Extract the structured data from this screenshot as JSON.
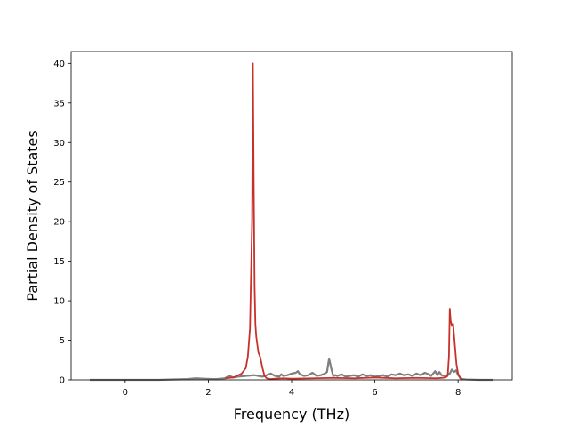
{
  "chart_data": {
    "type": "line",
    "title": "",
    "xlabel": "Frequency (THz)",
    "ylabel": "Partial Density of States",
    "xlim": [
      -1.3,
      9.3
    ],
    "ylim": [
      0,
      41.5
    ],
    "xticks": [
      0,
      2,
      4,
      6,
      8
    ],
    "yticks": [
      0,
      5,
      10,
      15,
      20,
      25,
      30,
      35,
      40
    ],
    "grid": false,
    "legend": "none",
    "series": [
      {
        "color": "#7f7f7f",
        "x": [
          -0.85,
          0.0,
          0.8,
          1.5,
          1.7,
          1.9,
          2.1,
          2.2,
          2.4,
          2.5,
          2.6,
          2.7,
          2.8,
          2.9,
          3.0,
          3.1,
          3.2,
          3.3,
          3.4,
          3.5,
          3.6,
          3.7,
          3.75,
          3.8,
          3.9,
          4.0,
          4.1,
          4.15,
          4.2,
          4.3,
          4.4,
          4.5,
          4.55,
          4.6,
          4.7,
          4.8,
          4.85,
          4.9,
          4.95,
          5.0,
          5.05,
          5.1,
          5.2,
          5.3,
          5.4,
          5.5,
          5.6,
          5.7,
          5.8,
          5.9,
          6.0,
          6.1,
          6.2,
          6.3,
          6.4,
          6.5,
          6.6,
          6.7,
          6.8,
          6.9,
          7.0,
          7.1,
          7.2,
          7.3,
          7.35,
          7.4,
          7.45,
          7.5,
          7.55,
          7.6,
          7.7,
          7.8,
          7.85,
          7.9,
          7.95,
          8.0,
          8.05,
          8.1,
          8.2,
          8.5,
          8.85
        ],
        "y": [
          0.0,
          0.0,
          0.0,
          0.1,
          0.2,
          0.15,
          0.1,
          0.1,
          0.2,
          0.5,
          0.3,
          0.4,
          0.45,
          0.5,
          0.55,
          0.6,
          0.5,
          0.4,
          0.6,
          0.8,
          0.5,
          0.4,
          0.7,
          0.5,
          0.6,
          0.8,
          0.9,
          1.1,
          0.7,
          0.5,
          0.6,
          0.9,
          0.7,
          0.5,
          0.6,
          0.8,
          1.0,
          2.7,
          1.5,
          0.5,
          0.6,
          0.5,
          0.7,
          0.4,
          0.5,
          0.6,
          0.4,
          0.7,
          0.5,
          0.6,
          0.4,
          0.5,
          0.6,
          0.4,
          0.7,
          0.6,
          0.8,
          0.6,
          0.7,
          0.5,
          0.8,
          0.6,
          0.9,
          0.7,
          0.5,
          0.8,
          1.1,
          0.6,
          1.0,
          0.6,
          0.5,
          0.8,
          1.3,
          1.0,
          1.2,
          0.6,
          0.3,
          0.1,
          0.05,
          0.0,
          0.0
        ]
      },
      {
        "color": "#c8302a",
        "x": [
          2.4,
          2.6,
          2.8,
          2.9,
          2.95,
          3.0,
          3.05,
          3.07,
          3.09,
          3.11,
          3.13,
          3.15,
          3.2,
          3.25,
          3.3,
          3.35,
          3.4,
          3.5,
          3.6,
          3.8,
          4.0,
          4.5,
          5.0,
          5.5,
          6.0,
          6.5,
          7.0,
          7.5,
          7.7,
          7.75,
          7.78,
          7.8,
          7.82,
          7.85,
          7.88,
          7.92,
          7.96,
          8.0,
          8.05,
          8.1
        ],
        "y": [
          0.2,
          0.3,
          0.8,
          1.5,
          3.0,
          6.5,
          20.0,
          40.0,
          25.0,
          12.0,
          7.0,
          5.5,
          3.5,
          2.8,
          1.5,
          0.5,
          0.2,
          0.1,
          0.15,
          0.2,
          0.15,
          0.2,
          0.25,
          0.2,
          0.3,
          0.2,
          0.25,
          0.2,
          0.3,
          0.5,
          3.0,
          9.0,
          7.5,
          6.8,
          7.1,
          4.5,
          2.0,
          0.8,
          0.2,
          0.0
        ]
      }
    ]
  }
}
